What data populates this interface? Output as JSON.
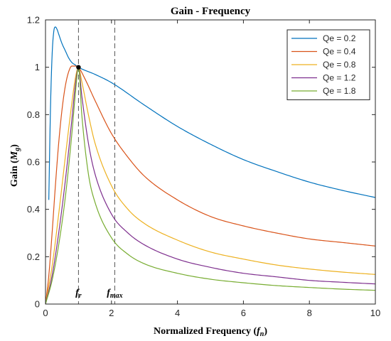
{
  "chart_data": {
    "type": "line",
    "title": "Gain - Frequency",
    "xlabel": "Normalized Frequency",
    "xlabel_symbol": "f",
    "xlabel_symbol_sub": "n",
    "ylabel": "Gain",
    "ylabel_symbol": "M",
    "ylabel_symbol_sub": "g",
    "xlim": [
      0,
      10
    ],
    "ylim": [
      0,
      1.2
    ],
    "xticks": [
      0,
      2,
      4,
      6,
      8,
      10
    ],
    "yticks": [
      0,
      0.2,
      0.4,
      0.6,
      0.8,
      1,
      1.2
    ],
    "grid": false,
    "legend_position": "top-right",
    "resonance_point": {
      "x": 1,
      "y": 1
    },
    "vlines": [
      {
        "x": 1,
        "label_main": "f",
        "label_sub": "r"
      },
      {
        "x": 2.1,
        "label_main": "f",
        "label_sub": "max"
      }
    ],
    "series": [
      {
        "name": "Qe = 0.2",
        "color": "#0072BD",
        "points": [
          [
            0.1,
            0.44
          ],
          [
            0.15,
            0.82
          ],
          [
            0.2,
            1.05
          ],
          [
            0.25,
            1.15
          ],
          [
            0.3,
            1.17
          ],
          [
            0.35,
            1.16
          ],
          [
            0.4,
            1.14
          ],
          [
            0.5,
            1.1
          ],
          [
            0.6,
            1.07
          ],
          [
            0.7,
            1.04
          ],
          [
            0.8,
            1.02
          ],
          [
            0.9,
            1.01
          ],
          [
            1,
            1
          ],
          [
            1.5,
            0.97
          ],
          [
            2,
            0.935
          ],
          [
            3,
            0.84
          ],
          [
            4,
            0.75
          ],
          [
            5,
            0.675
          ],
          [
            6,
            0.61
          ],
          [
            7,
            0.56
          ],
          [
            8,
            0.515
          ],
          [
            9,
            0.48
          ],
          [
            10,
            0.45
          ]
        ]
      },
      {
        "name": "Qe = 0.4",
        "color": "#D95319",
        "points": [
          [
            0,
            0
          ],
          [
            0.1,
            0.12
          ],
          [
            0.2,
            0.3
          ],
          [
            0.3,
            0.5
          ],
          [
            0.4,
            0.68
          ],
          [
            0.5,
            0.82
          ],
          [
            0.6,
            0.92
          ],
          [
            0.7,
            0.98
          ],
          [
            0.8,
            1.005
          ],
          [
            0.9,
            1.005
          ],
          [
            1,
            1
          ],
          [
            1.2,
            0.95
          ],
          [
            1.5,
            0.86
          ],
          [
            2,
            0.72
          ],
          [
            2.5,
            0.62
          ],
          [
            3,
            0.54
          ],
          [
            4,
            0.44
          ],
          [
            5,
            0.37
          ],
          [
            6,
            0.33
          ],
          [
            7,
            0.3
          ],
          [
            8,
            0.275
          ],
          [
            9,
            0.26
          ],
          [
            10,
            0.245
          ]
        ]
      },
      {
        "name": "Qe = 0.8",
        "color": "#EDB120",
        "points": [
          [
            0,
            0
          ],
          [
            0.2,
            0.16
          ],
          [
            0.4,
            0.38
          ],
          [
            0.6,
            0.62
          ],
          [
            0.8,
            0.85
          ],
          [
            0.9,
            0.95
          ],
          [
            1,
            1
          ],
          [
            1.1,
            0.94
          ],
          [
            1.3,
            0.8
          ],
          [
            1.5,
            0.68
          ],
          [
            2,
            0.5
          ],
          [
            2.5,
            0.4
          ],
          [
            3,
            0.34
          ],
          [
            4,
            0.27
          ],
          [
            5,
            0.22
          ],
          [
            6,
            0.19
          ],
          [
            7,
            0.165
          ],
          [
            8,
            0.148
          ],
          [
            9,
            0.135
          ],
          [
            10,
            0.125
          ]
        ]
      },
      {
        "name": "Qe = 1.2",
        "color": "#7E2F8E",
        "points": [
          [
            0,
            0
          ],
          [
            0.2,
            0.12
          ],
          [
            0.4,
            0.3
          ],
          [
            0.6,
            0.52
          ],
          [
            0.8,
            0.78
          ],
          [
            0.9,
            0.92
          ],
          [
            1,
            1
          ],
          [
            1.1,
            0.88
          ],
          [
            1.3,
            0.68
          ],
          [
            1.5,
            0.55
          ],
          [
            2,
            0.38
          ],
          [
            2.5,
            0.3
          ],
          [
            3,
            0.25
          ],
          [
            4,
            0.19
          ],
          [
            5,
            0.155
          ],
          [
            6,
            0.13
          ],
          [
            7,
            0.115
          ],
          [
            8,
            0.1
          ],
          [
            9,
            0.092
          ],
          [
            10,
            0.085
          ]
        ]
      },
      {
        "name": "Qe = 1.8",
        "color": "#77AC30",
        "points": [
          [
            0,
            0
          ],
          [
            0.2,
            0.1
          ],
          [
            0.4,
            0.25
          ],
          [
            0.6,
            0.45
          ],
          [
            0.8,
            0.72
          ],
          [
            0.9,
            0.88
          ],
          [
            1,
            1
          ],
          [
            1.1,
            0.8
          ],
          [
            1.3,
            0.55
          ],
          [
            1.5,
            0.43
          ],
          [
            2,
            0.28
          ],
          [
            2.5,
            0.21
          ],
          [
            3,
            0.17
          ],
          [
            4,
            0.13
          ],
          [
            5,
            0.105
          ],
          [
            6,
            0.09
          ],
          [
            7,
            0.078
          ],
          [
            8,
            0.07
          ],
          [
            9,
            0.063
          ],
          [
            10,
            0.058
          ]
        ]
      }
    ]
  }
}
